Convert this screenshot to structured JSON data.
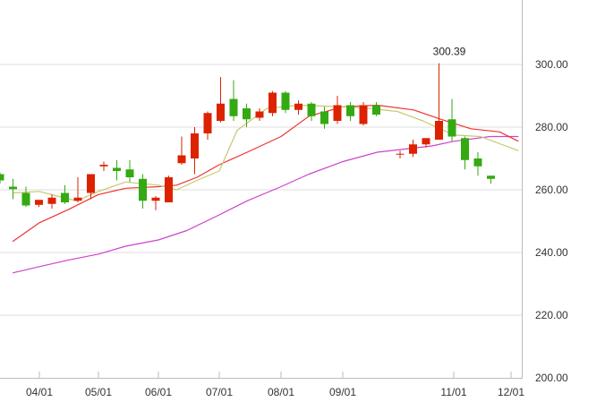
{
  "chart_data": {
    "type": "candlestick",
    "ylim": [
      200,
      310
    ],
    "y_ticks": [
      "200.00",
      "220.00",
      "240.00",
      "260.00",
      "280.00",
      "300.00"
    ],
    "x_ticks": [
      "04/01",
      "05/01",
      "06/01",
      "07/01",
      "08/01",
      "09/01",
      "11/01",
      "12/01"
    ],
    "grid": "horizontal",
    "annotations": [
      {
        "text": "300.39",
        "value": 300.39
      }
    ],
    "colors": {
      "up": "#dd2200",
      "down": "#33aa11",
      "ma_short": "#c8c870",
      "ma_mid": "#ee3333",
      "ma_long": "#cc44cc",
      "grid": "#dddddd",
      "axis": "#bbbbbb"
    },
    "candles": [
      {
        "o": 265.0,
        "h": 265.5,
        "l": 262.0,
        "c": 263.0
      },
      {
        "o": 261.0,
        "h": 263.5,
        "l": 257.0,
        "c": 260.2
      },
      {
        "o": 259.0,
        "h": 261.0,
        "l": 254.5,
        "c": 255.0
      },
      {
        "o": 255.2,
        "h": 256.5,
        "l": 254.5,
        "c": 256.8
      },
      {
        "o": 255.5,
        "h": 258.5,
        "l": 254.0,
        "c": 257.5
      },
      {
        "o": 259.0,
        "h": 261.5,
        "l": 255.5,
        "c": 256.0
      },
      {
        "o": 256.5,
        "h": 264.0,
        "l": 256.0,
        "c": 257.5
      },
      {
        "o": 259.0,
        "h": 265.0,
        "l": 257.0,
        "c": 265.0
      },
      {
        "o": 267.5,
        "h": 269.0,
        "l": 266.0,
        "c": 268.0
      },
      {
        "o": 267.0,
        "h": 269.5,
        "l": 263.0,
        "c": 266.0
      },
      {
        "o": 266.5,
        "h": 269.5,
        "l": 262.5,
        "c": 264.0
      },
      {
        "o": 263.5,
        "h": 265.0,
        "l": 254.0,
        "c": 256.5
      },
      {
        "o": 256.5,
        "h": 258.0,
        "l": 253.5,
        "c": 257.5
      },
      {
        "o": 256.0,
        "h": 264.5,
        "l": 256.0,
        "c": 264.0
      },
      {
        "o": 268.5,
        "h": 277.0,
        "l": 268.0,
        "c": 271.0
      },
      {
        "o": 270.0,
        "h": 280.0,
        "l": 265.0,
        "c": 278.0
      },
      {
        "o": 278.0,
        "h": 285.0,
        "l": 276.0,
        "c": 284.5
      },
      {
        "o": 282.0,
        "h": 296.0,
        "l": 281.5,
        "c": 287.5
      },
      {
        "o": 289.0,
        "h": 295.0,
        "l": 282.0,
        "c": 283.5
      },
      {
        "o": 286.0,
        "h": 287.5,
        "l": 280.0,
        "c": 282.5
      },
      {
        "o": 283.0,
        "h": 286.0,
        "l": 282.0,
        "c": 285.0
      },
      {
        "o": 284.5,
        "h": 291.5,
        "l": 283.5,
        "c": 291.0
      },
      {
        "o": 291.0,
        "h": 291.5,
        "l": 284.5,
        "c": 285.5
      },
      {
        "o": 285.5,
        "h": 288.5,
        "l": 284.0,
        "c": 287.5
      },
      {
        "o": 287.5,
        "h": 288.0,
        "l": 282.0,
        "c": 283.5
      },
      {
        "o": 285.0,
        "h": 286.5,
        "l": 279.5,
        "c": 281.0
      },
      {
        "o": 282.0,
        "h": 290.0,
        "l": 281.0,
        "c": 287.0
      },
      {
        "o": 287.0,
        "h": 288.0,
        "l": 282.0,
        "c": 283.5
      },
      {
        "o": 281.0,
        "h": 288.0,
        "l": 280.5,
        "c": 287.0
      },
      {
        "o": 287.0,
        "h": 288.0,
        "l": 283.5,
        "c": 284.0
      },
      {
        "o": 271.5,
        "h": 272.5,
        "l": 270.0,
        "c": 271.5
      },
      {
        "o": 271.5,
        "h": 276.0,
        "l": 270.5,
        "c": 274.5
      },
      {
        "o": 274.5,
        "h": 276.5,
        "l": 273.5,
        "c": 276.5
      },
      {
        "o": 276.0,
        "h": 300.39,
        "l": 276.0,
        "c": 282.0
      },
      {
        "o": 282.5,
        "h": 289.0,
        "l": 275.5,
        "c": 277.0
      },
      {
        "o": 276.5,
        "h": 277.0,
        "l": 266.5,
        "c": 269.5
      },
      {
        "o": 270.0,
        "h": 272.0,
        "l": 264.5,
        "c": 267.5
      },
      {
        "o": 264.5,
        "h": 264.5,
        "l": 262.0,
        "c": 263.5
      }
    ],
    "ma_short": [
      {
        "d": "03/16",
        "v": 259.0
      },
      {
        "d": "04/01",
        "v": 259.5
      },
      {
        "d": "04/10",
        "v": 258.0
      },
      {
        "d": "04/20",
        "v": 256.5
      },
      {
        "d": "05/01",
        "v": 259.5
      },
      {
        "d": "05/15",
        "v": 262.5
      },
      {
        "d": "06/01",
        "v": 261.5
      },
      {
        "d": "06/10",
        "v": 260.0
      },
      {
        "d": "06/20",
        "v": 263.0
      },
      {
        "d": "07/01",
        "v": 266.0
      },
      {
        "d": "07/10",
        "v": 279.0
      },
      {
        "d": "07/25",
        "v": 286.0
      },
      {
        "d": "08/10",
        "v": 287.0
      },
      {
        "d": "09/01",
        "v": 286.5
      },
      {
        "d": "09/15",
        "v": 286.0
      },
      {
        "d": "10/01",
        "v": 285.0
      },
      {
        "d": "10/15",
        "v": 282.0
      },
      {
        "d": "11/01",
        "v": 277.5
      },
      {
        "d": "11/15",
        "v": 277.0
      },
      {
        "d": "12/05",
        "v": 272.5
      }
    ],
    "ma_mid": [
      {
        "d": "03/16",
        "v": 243.5
      },
      {
        "d": "04/01",
        "v": 249.5
      },
      {
        "d": "04/15",
        "v": 253.5
      },
      {
        "d": "05/01",
        "v": 258.5
      },
      {
        "d": "05/15",
        "v": 260.5
      },
      {
        "d": "06/01",
        "v": 261.0
      },
      {
        "d": "06/10",
        "v": 261.5
      },
      {
        "d": "06/20",
        "v": 264.0
      },
      {
        "d": "07/01",
        "v": 268.0
      },
      {
        "d": "07/15",
        "v": 272.0
      },
      {
        "d": "08/01",
        "v": 277.0
      },
      {
        "d": "08/15",
        "v": 283.5
      },
      {
        "d": "09/01",
        "v": 286.5
      },
      {
        "d": "09/20",
        "v": 287.0
      },
      {
        "d": "10/10",
        "v": 285.5
      },
      {
        "d": "10/25",
        "v": 282.5
      },
      {
        "d": "11/10",
        "v": 279.5
      },
      {
        "d": "11/25",
        "v": 278.5
      },
      {
        "d": "12/05",
        "v": 275.5
      }
    ],
    "ma_long": [
      {
        "d": "03/16",
        "v": 233.5
      },
      {
        "d": "04/01",
        "v": 235.5
      },
      {
        "d": "04/15",
        "v": 237.5
      },
      {
        "d": "05/01",
        "v": 239.5
      },
      {
        "d": "05/15",
        "v": 242.0
      },
      {
        "d": "06/01",
        "v": 244.0
      },
      {
        "d": "06/15",
        "v": 247.0
      },
      {
        "d": "07/01",
        "v": 252.0
      },
      {
        "d": "07/15",
        "v": 256.5
      },
      {
        "d": "08/01",
        "v": 261.0
      },
      {
        "d": "08/15",
        "v": 265.0
      },
      {
        "d": "09/01",
        "v": 269.0
      },
      {
        "d": "09/20",
        "v": 272.0
      },
      {
        "d": "10/05",
        "v": 273.0
      },
      {
        "d": "10/20",
        "v": 274.0
      },
      {
        "d": "11/01",
        "v": 275.5
      },
      {
        "d": "11/20",
        "v": 277.0
      },
      {
        "d": "12/05",
        "v": 277.0
      }
    ]
  }
}
